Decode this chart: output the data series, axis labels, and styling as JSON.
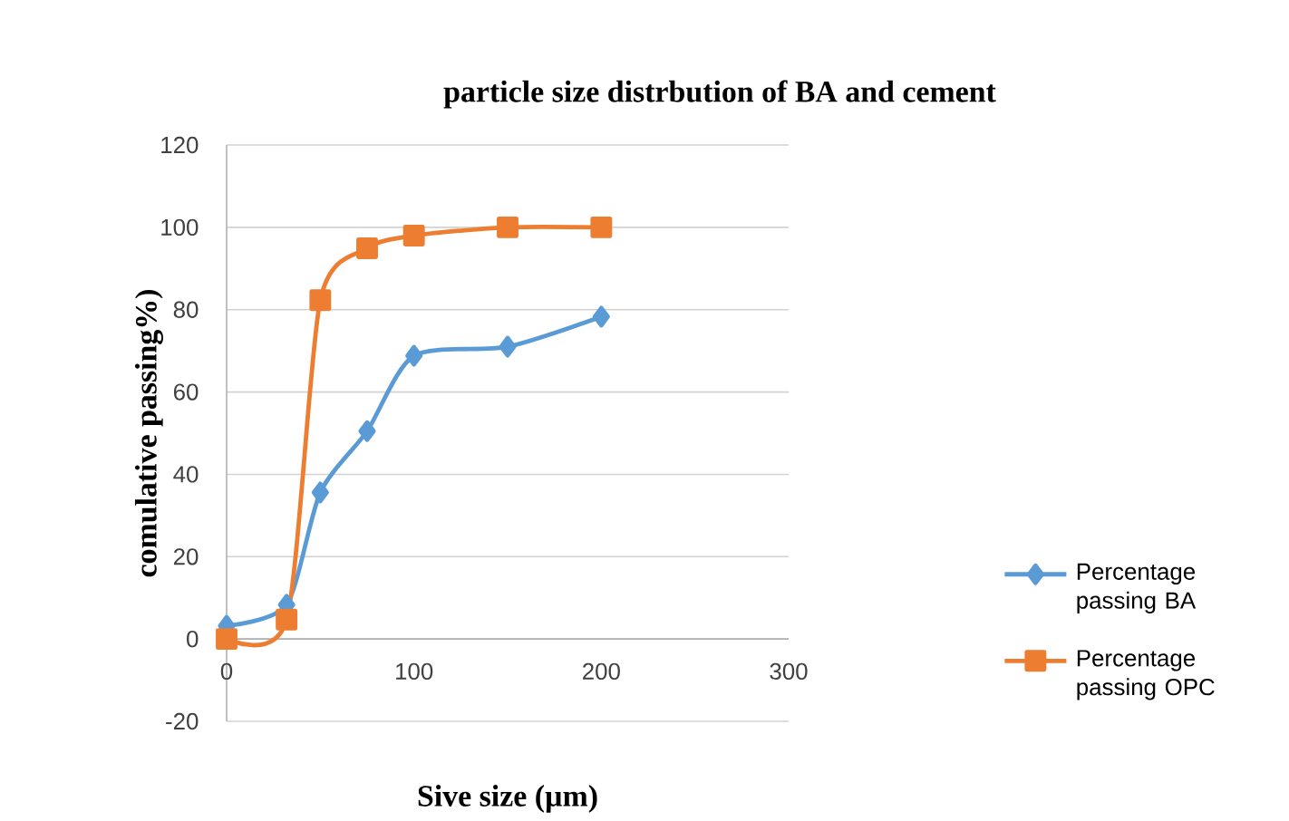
{
  "chart_data": {
    "type": "line",
    "title": "particle size distrbution of BA and cement",
    "xlabel": "Sive size (µm)",
    "ylabel": "comulative passing%)",
    "xlim": [
      0,
      300
    ],
    "xticks": [
      0,
      100,
      200,
      300
    ],
    "ylim": [
      -20,
      120
    ],
    "yticks": [
      -20,
      0,
      20,
      40,
      60,
      80,
      100,
      120
    ],
    "grid": "y",
    "legend": "right",
    "series": [
      {
        "name": "Percentage passing BA",
        "color": "#5b9bd5",
        "marker": "diamond",
        "x": [
          0,
          32,
          50,
          75,
          100,
          150,
          200
        ],
        "values": [
          3.2,
          8.3,
          35.6,
          50.5,
          68.8,
          71,
          78.3
        ]
      },
      {
        "name": "Percentage passing OPC",
        "color": "#ed7d31",
        "marker": "square",
        "x": [
          0,
          32,
          50,
          75,
          100,
          150,
          200
        ],
        "values": [
          0,
          4.7,
          82.3,
          94.9,
          98,
          100,
          100
        ]
      }
    ]
  }
}
